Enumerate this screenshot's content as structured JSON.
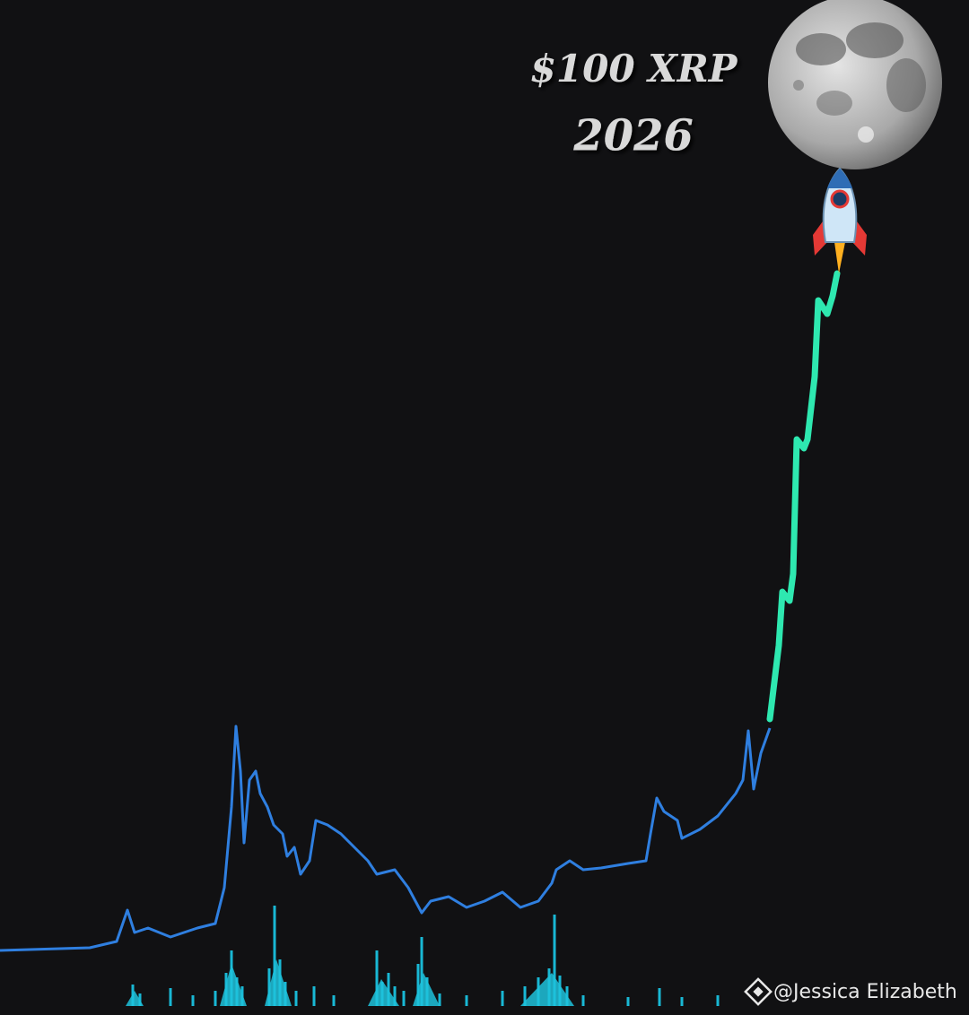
{
  "headline": {
    "title": "$100 XRP",
    "year": "2026"
  },
  "watermark": "@Jessica Elizabeth"
}
